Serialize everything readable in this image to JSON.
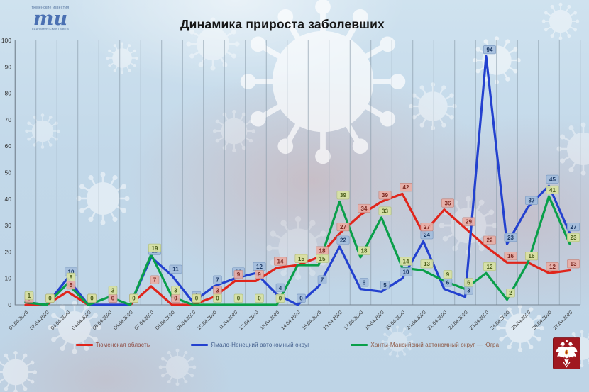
{
  "logo": {
    "top_caption": "тюменские известия",
    "monogram": "ти",
    "bottom_caption": "парламентская газета"
  },
  "chart_data": {
    "type": "line",
    "title": "Динамика прироста заболевших",
    "xlabel": "",
    "ylabel": "",
    "ylim": [
      0,
      100
    ],
    "y_step": 10,
    "grid": "vertical-only",
    "legend_position": "bottom",
    "categories": [
      "01.04.2020",
      "02.04.2020",
      "03.04.2020",
      "04.04.2020",
      "05.04.2020",
      "06.04.2020",
      "07.04.2020",
      "08.04.2020",
      "09.04.2020",
      "10.04.2020",
      "11.04.2020",
      "12.04.2020",
      "13.04.2020",
      "14.04.2020",
      "15.04.2020",
      "16.04.2020",
      "17.04.2020",
      "18.04.2020",
      "19.04.2020",
      "20.04.2020",
      "21.04.2020",
      "22.04.2020",
      "23.04.2020",
      "24.04.2020",
      "25.04.2020",
      "26.04.2020",
      "27.04.2020"
    ],
    "series": [
      {
        "name": "Тюменская область",
        "color": "#e0251b",
        "label_bg": "#e9aea6",
        "label_border": "#c4867e",
        "label_color": "#7e2a22",
        "legend_text_color": "#8e4a40",
        "values": [
          0,
          0,
          5,
          0,
          0,
          0,
          7,
          0,
          0,
          3,
          9,
          9,
          14,
          15,
          18,
          27,
          34,
          39,
          42,
          27,
          36,
          29,
          22,
          16,
          16,
          12,
          13
        ]
      },
      {
        "name": "Ямало-Ненецкий  автономный  округ",
        "color": "#2341cf",
        "label_bg": "#a4bedd",
        "label_border": "#7d9cc4",
        "label_color": "#1c3a66",
        "legend_text_color": "#44608e",
        "values": [
          1,
          0,
          10,
          0,
          0,
          0,
          18,
          11,
          1,
          7,
          10,
          12,
          4,
          0,
          7,
          22,
          6,
          5,
          10,
          24,
          6,
          3,
          94,
          23,
          37,
          45,
          27
        ]
      },
      {
        "name": "Ханты-Мансийский автономный округ — Югра",
        "color": "#0a9f4a",
        "label_bg": "#d8e2a3",
        "label_border": "#b3c37e",
        "label_color": "#4c5f1d",
        "legend_text_color": "#8e5a46",
        "values": [
          1,
          0,
          8,
          0,
          3,
          0,
          19,
          3,
          0,
          0,
          0,
          0,
          0,
          15,
          15,
          39,
          18,
          33,
          14,
          13,
          9,
          6,
          12,
          2,
          16,
          41,
          23
        ]
      }
    ]
  },
  "emblem": {
    "background_color": "#a01820",
    "shield_color": "#e8a83c"
  }
}
